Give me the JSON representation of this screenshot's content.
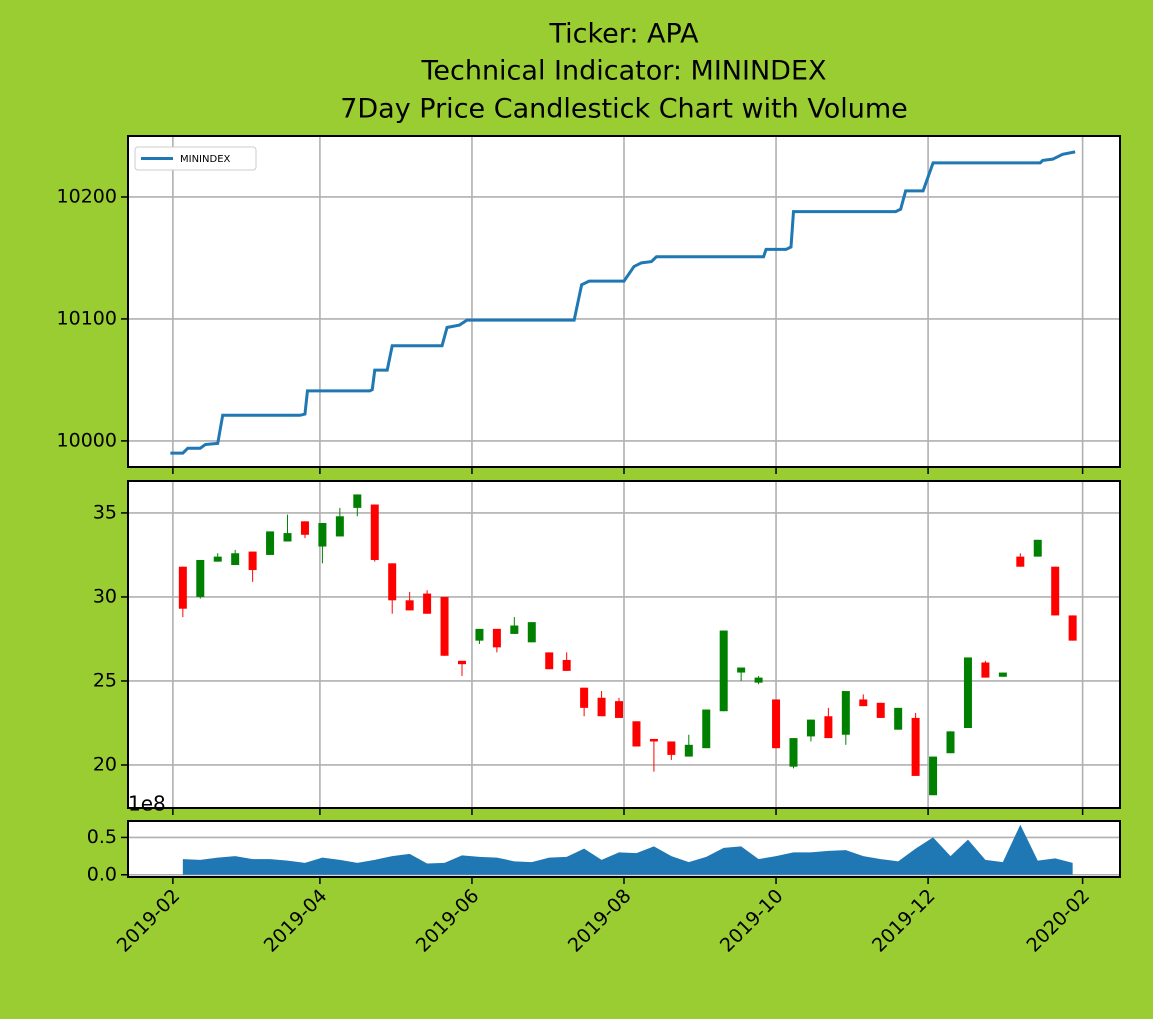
{
  "title": [
    "Ticker: APA",
    "Technical Indicator: MININDEX",
    "7Day Price Candlestick Chart with Volume"
  ],
  "chart_data": [
    {
      "type": "line",
      "legend": "upper left",
      "grid": true,
      "x": [
        "2019-01-31",
        "2019-02-05",
        "2019-02-07",
        "2019-02-12",
        "2019-02-14",
        "2019-02-19",
        "2019-02-21",
        "2019-03-24",
        "2019-03-26",
        "2019-03-27",
        "2019-04-21",
        "2019-04-22",
        "2019-04-23",
        "2019-04-28",
        "2019-04-30",
        "2019-05-20",
        "2019-05-22",
        "2019-05-27",
        "2019-05-30",
        "2019-07-12",
        "2019-07-15",
        "2019-07-18",
        "2019-08-01",
        "2019-08-05",
        "2019-08-08",
        "2019-08-12",
        "2019-08-14",
        "2019-09-26",
        "2019-09-27",
        "2019-10-05",
        "2019-10-07",
        "2019-10-08",
        "2019-11-18",
        "2019-11-20",
        "2019-11-22",
        "2019-11-29",
        "2019-12-03",
        "2020-01-15",
        "2020-01-16",
        "2020-01-20",
        "2020-01-24",
        "2020-01-29"
      ],
      "series": [
        {
          "name": "MININDEX",
          "color": "#1f77b4",
          "values": [
            9990,
            9990,
            9994,
            9994,
            9997,
            9998,
            10021,
            10021,
            10022,
            10041,
            10041,
            10042,
            10058,
            10058,
            10078,
            10078,
            10093,
            10095,
            10099,
            10099,
            10128,
            10131,
            10131,
            10143,
            10146,
            10147,
            10151,
            10151,
            10157,
            10157,
            10159,
            10188,
            10188,
            10190,
            10205,
            10205,
            10228,
            10228,
            10230,
            10231,
            10235,
            10237
          ]
        }
      ],
      "xlim": [
        "2019-01-14",
        "2020-02-16"
      ],
      "xticks": [
        "2019-02-01",
        "2019-04-01",
        "2019-06-01",
        "2019-08-01",
        "2019-10-01",
        "2019-12-01",
        "2020-02-01"
      ],
      "ylim": [
        9978.6,
        10250
      ],
      "yticks": [
        10000,
        10100,
        10200
      ]
    },
    {
      "type": "candlestick",
      "grid": true,
      "up_color": "green",
      "down_color": "red",
      "x": [
        "2019-02-05",
        "2019-02-12",
        "2019-02-19",
        "2019-02-26",
        "2019-03-05",
        "2019-03-12",
        "2019-03-19",
        "2019-03-26",
        "2019-04-02",
        "2019-04-09",
        "2019-04-16",
        "2019-04-23",
        "2019-04-30",
        "2019-05-07",
        "2019-05-14",
        "2019-05-21",
        "2019-05-28",
        "2019-06-04",
        "2019-06-11",
        "2019-06-18",
        "2019-06-25",
        "2019-07-02",
        "2019-07-09",
        "2019-07-16",
        "2019-07-23",
        "2019-07-30",
        "2019-08-06",
        "2019-08-13",
        "2019-08-20",
        "2019-08-27",
        "2019-09-03",
        "2019-09-10",
        "2019-09-17",
        "2019-09-24",
        "2019-10-01",
        "2019-10-08",
        "2019-10-15",
        "2019-10-22",
        "2019-10-29",
        "2019-11-05",
        "2019-11-12",
        "2019-11-19",
        "2019-11-26",
        "2019-12-03",
        "2019-12-10",
        "2019-12-17",
        "2019-12-24",
        "2019-12-31",
        "2020-01-07",
        "2020-01-14",
        "2020-01-21",
        "2020-01-28"
      ],
      "open": [
        31.8,
        30.0,
        32.1,
        31.9,
        32.7,
        32.5,
        33.3,
        34.5,
        33.0,
        33.6,
        35.3,
        35.5,
        32.0,
        29.8,
        30.2,
        30.0,
        26.2,
        27.4,
        28.1,
        27.8,
        27.3,
        26.7,
        26.25,
        24.6,
        24.0,
        23.8,
        22.6,
        21.55,
        21.4,
        20.5,
        21.0,
        23.2,
        25.5,
        24.9,
        23.9,
        19.9,
        21.7,
        22.9,
        21.8,
        23.9,
        23.7,
        22.1,
        22.8,
        18.2,
        20.7,
        22.2,
        26.1,
        25.25,
        32.4,
        32.4,
        31.8,
        28.9
      ],
      "high": [
        31.8,
        32.2,
        32.6,
        32.8,
        32.7,
        33.9,
        34.9,
        34.5,
        34.4,
        35.3,
        36.1,
        35.5,
        32.0,
        30.3,
        30.4,
        30.0,
        26.2,
        28.1,
        28.1,
        28.8,
        28.5,
        26.7,
        26.7,
        24.6,
        24.4,
        24.0,
        22.6,
        21.55,
        21.4,
        21.8,
        23.3,
        28.0,
        25.8,
        25.3,
        23.9,
        21.6,
        22.7,
        23.4,
        24.4,
        24.2,
        23.7,
        23.4,
        23.1,
        20.5,
        22.0,
        26.4,
        26.2,
        25.5,
        32.6,
        33.4,
        31.8,
        28.9
      ],
      "low": [
        28.8,
        29.9,
        32.1,
        31.9,
        30.9,
        32.5,
        33.3,
        33.5,
        32.0,
        33.6,
        34.8,
        32.1,
        29.0,
        29.2,
        29.0,
        26.5,
        25.3,
        27.2,
        26.7,
        27.8,
        27.3,
        25.7,
        25.6,
        22.9,
        22.9,
        22.8,
        21.1,
        19.6,
        20.3,
        20.5,
        21.0,
        23.2,
        25.0,
        24.8,
        21.0,
        19.8,
        21.4,
        21.6,
        21.2,
        23.5,
        22.8,
        22.1,
        19.35,
        18.2,
        20.7,
        22.2,
        25.2,
        25.25,
        31.8,
        32.4,
        28.9,
        27.4
      ],
      "close": [
        29.3,
        32.2,
        32.4,
        32.6,
        31.6,
        33.9,
        33.8,
        33.7,
        34.4,
        34.8,
        36.1,
        32.2,
        29.8,
        29.2,
        29.0,
        26.5,
        26.0,
        28.1,
        27.0,
        28.3,
        28.5,
        25.7,
        25.6,
        23.4,
        22.9,
        22.8,
        21.1,
        21.4,
        20.6,
        21.2,
        23.3,
        28.0,
        25.8,
        25.2,
        21.0,
        21.6,
        22.7,
        21.6,
        24.4,
        23.5,
        22.8,
        23.4,
        19.35,
        20.5,
        22.0,
        26.4,
        25.2,
        25.5,
        31.8,
        33.4,
        28.9,
        27.4
      ],
      "xlim": [
        "2019-01-14",
        "2020-02-16"
      ],
      "xticks": [
        "2019-02-01",
        "2019-04-01",
        "2019-06-01",
        "2019-08-01",
        "2019-10-01",
        "2019-12-01",
        "2020-02-01"
      ],
      "ylim": [
        17.44,
        36.9
      ],
      "yticks": [
        20,
        25,
        30,
        35
      ]
    },
    {
      "type": "area",
      "grid": "y",
      "color": "#1f77b4",
      "y_offset_label": "1e8",
      "x": [
        "2019-02-05",
        "2019-02-12",
        "2019-02-19",
        "2019-02-26",
        "2019-03-05",
        "2019-03-12",
        "2019-03-19",
        "2019-03-26",
        "2019-04-02",
        "2019-04-09",
        "2019-04-16",
        "2019-04-23",
        "2019-04-30",
        "2019-05-07",
        "2019-05-14",
        "2019-05-21",
        "2019-05-28",
        "2019-06-04",
        "2019-06-11",
        "2019-06-18",
        "2019-06-25",
        "2019-07-02",
        "2019-07-09",
        "2019-07-16",
        "2019-07-23",
        "2019-07-30",
        "2019-08-06",
        "2019-08-13",
        "2019-08-20",
        "2019-08-27",
        "2019-09-03",
        "2019-09-10",
        "2019-09-17",
        "2019-09-24",
        "2019-10-01",
        "2019-10-08",
        "2019-10-15",
        "2019-10-22",
        "2019-10-29",
        "2019-11-05",
        "2019-11-12",
        "2019-11-19",
        "2019-11-26",
        "2019-12-03",
        "2019-12-10",
        "2019-12-17",
        "2019-12-24",
        "2019-12-31",
        "2020-01-07",
        "2020-01-14",
        "2020-01-21",
        "2020-01-28"
      ],
      "values": [
        0.21,
        0.2,
        0.23,
        0.25,
        0.21,
        0.21,
        0.19,
        0.16,
        0.23,
        0.2,
        0.16,
        0.2,
        0.25,
        0.28,
        0.15,
        0.16,
        0.26,
        0.24,
        0.23,
        0.18,
        0.17,
        0.23,
        0.24,
        0.35,
        0.2,
        0.3,
        0.29,
        0.38,
        0.25,
        0.17,
        0.24,
        0.36,
        0.38,
        0.21,
        0.25,
        0.3,
        0.3,
        0.32,
        0.33,
        0.25,
        0.21,
        0.18,
        0.35,
        0.5,
        0.25,
        0.47,
        0.2,
        0.17,
        0.67,
        0.19,
        0.22,
        0.16
      ],
      "xlim": [
        "2019-01-14",
        "2020-02-16"
      ],
      "xticks": [
        {
          "value": "2019-02-01",
          "label": "2019-02"
        },
        {
          "value": "2019-04-01",
          "label": "2019-04"
        },
        {
          "value": "2019-06-01",
          "label": "2019-06"
        },
        {
          "value": "2019-08-01",
          "label": "2019-08"
        },
        {
          "value": "2019-10-01",
          "label": "2019-10"
        },
        {
          "value": "2019-12-01",
          "label": "2019-12"
        },
        {
          "value": "2020-02-01",
          "label": "2020-02"
        }
      ],
      "ylim": [
        -0.03,
        0.72
      ],
      "yticks": [
        {
          "value": 0,
          "label": "0.0"
        },
        0.5
      ]
    }
  ]
}
